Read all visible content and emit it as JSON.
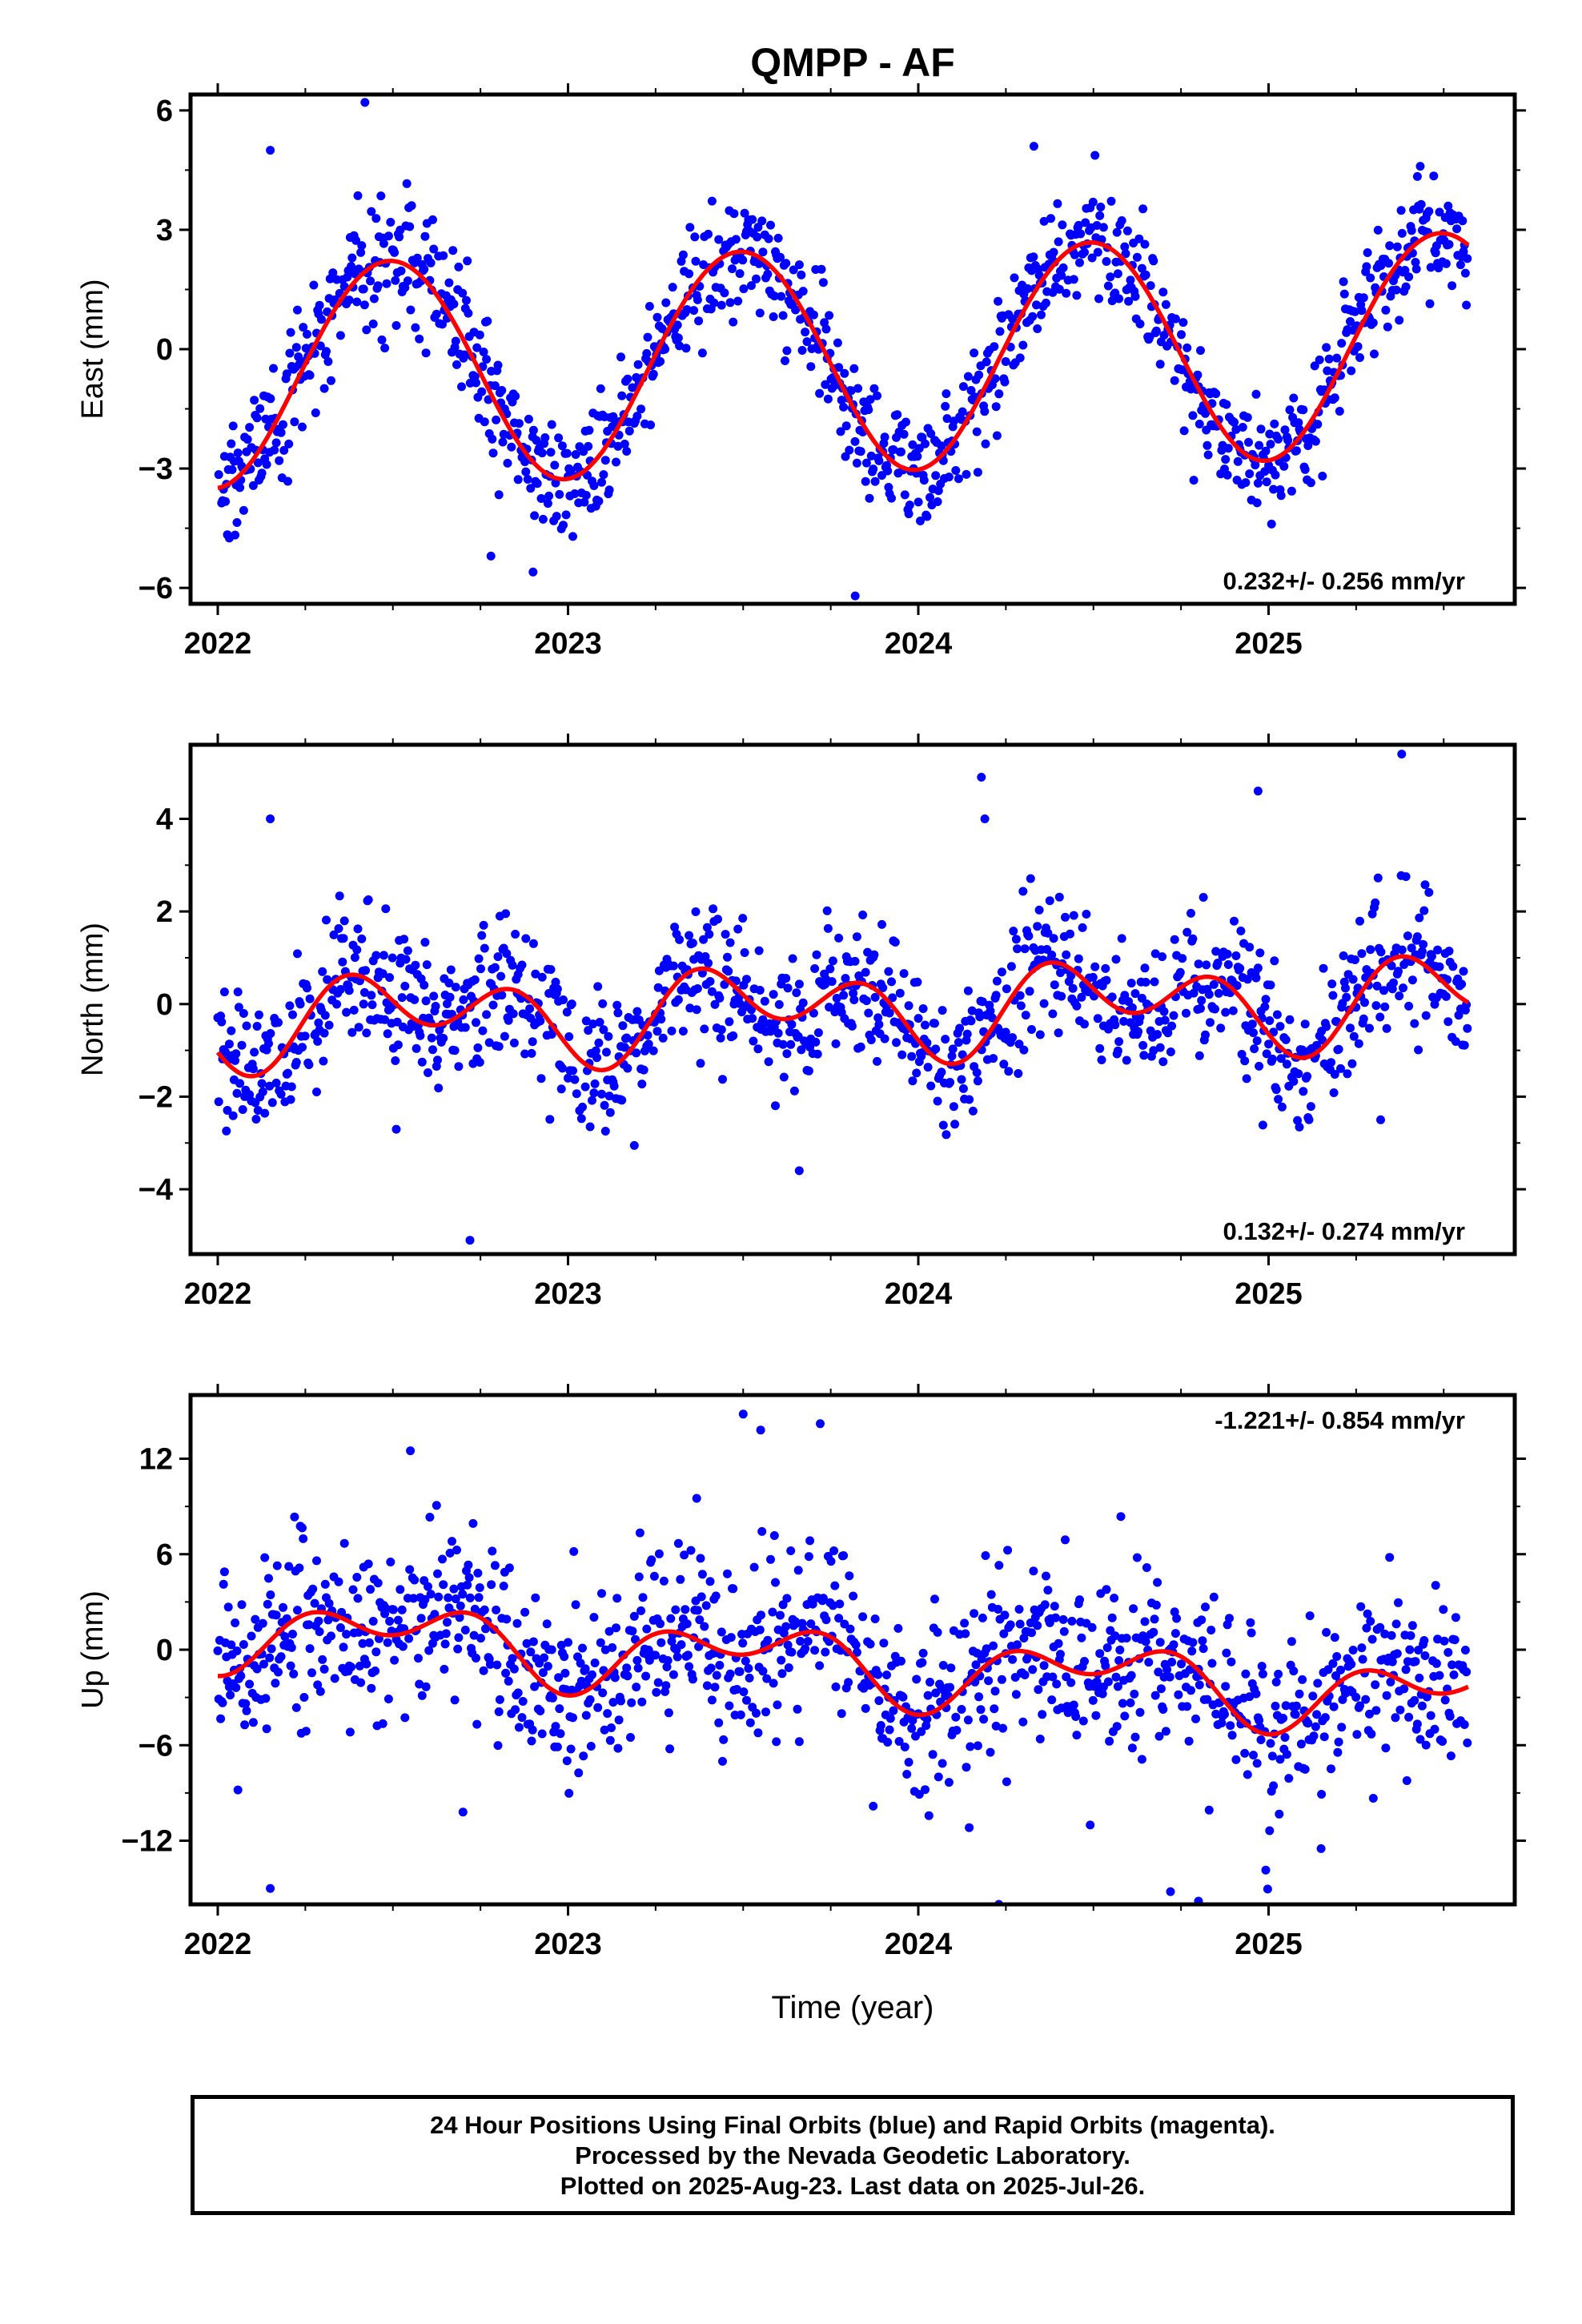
{
  "figure": {
    "title": "QMPP - AF",
    "x_tick_labels": [
      "2022",
      "2023",
      "2024",
      "2025"
    ],
    "x_axis_label": "Time (year)",
    "colors": {
      "points": "#0000ff",
      "fit": "#ff0000",
      "frame": "#000000"
    }
  },
  "chart_data": [
    {
      "type": "scatter",
      "component": "East",
      "ylabel": "East (mm)",
      "rate_label": "0.232+/- 0.256 mm/yr",
      "rate_position": "bottom-right",
      "x_range": [
        2021.92,
        2025.65
      ],
      "ylim": [
        -6.4,
        6.4
      ],
      "y_ticks": [
        -6,
        -3,
        0,
        3,
        6
      ],
      "y_tick_labels": [
        "−6",
        "−3",
        "0",
        "3",
        "6"
      ],
      "seasonal_model": {
        "offset": -0.3,
        "rate": 0.232,
        "t0": 2023.5,
        "amp1": 2.8,
        "phase1": 2022.24,
        "amp2": 0.05,
        "phase2": 2022.1
      },
      "scatter_sd": 0.75,
      "outliers": [
        [
          2022.15,
          5.0
        ],
        [
          2022.42,
          6.2
        ],
        [
          2022.78,
          -5.2
        ],
        [
          2022.9,
          -5.6
        ],
        [
          2023.82,
          -6.2
        ],
        [
          2024.33,
          5.1
        ]
      ],
      "series": [
        {
          "name": "",
          "kind": "daily positions",
          "start": 2022.0,
          "end": 2025.57,
          "step": 0.00274
        },
        {
          "name": "",
          "kind": "model fit",
          "start": 2022.0,
          "end": 2025.57,
          "step": 0.005
        }
      ]
    },
    {
      "type": "scatter",
      "component": "North",
      "ylabel": "North (mm)",
      "rate_label": "0.132+/- 0.274 mm/yr",
      "rate_position": "bottom-right",
      "x_range": [
        2021.92,
        2025.65
      ],
      "ylim": [
        -5.4,
        5.6
      ],
      "y_ticks": [
        -4,
        -2,
        0,
        2,
        4
      ],
      "y_tick_labels": [
        "−4",
        "−2",
        "0",
        "2",
        "4"
      ],
      "seasonal_model": {
        "offset": -0.15,
        "rate": 0.132,
        "t0": 2023.5,
        "amp1": 0.55,
        "phase1": 2022.3,
        "amp2": 0.7,
        "phase2": 2022.23
      },
      "scatter_sd": 0.75,
      "outliers": [
        [
          2022.15,
          4.0
        ],
        [
          2022.72,
          -5.1
        ],
        [
          2023.66,
          -3.6
        ],
        [
          2024.18,
          4.9
        ],
        [
          2024.19,
          4.0
        ],
        [
          2024.97,
          4.6
        ],
        [
          2025.32,
          -2.5
        ],
        [
          2025.38,
          5.4
        ]
      ],
      "series": [
        {
          "name": "",
          "kind": "daily positions",
          "start": 2022.0,
          "end": 2025.57,
          "step": 0.00274
        },
        {
          "name": "",
          "kind": "model fit",
          "start": 2022.0,
          "end": 2025.57,
          "step": 0.005
        }
      ]
    },
    {
      "type": "scatter",
      "component": "Up",
      "ylabel": "Up (mm)",
      "rate_label": "-1.221+/- 0.854 mm/yr",
      "rate_position": "top-right",
      "x_range": [
        2021.92,
        2025.65
      ],
      "ylim": [
        -16,
        16
      ],
      "y_ticks": [
        -12,
        -6,
        0,
        6,
        12
      ],
      "y_tick_labels": [
        "−12",
        "−6",
        "0",
        "6",
        "12"
      ],
      "seasonal_model": {
        "offset": -0.5,
        "rate": -1.221,
        "t0": 2023.5,
        "amp1": 1.6,
        "phase1": 2022.27,
        "amp2": 1.4,
        "phase2": 2022.12
      },
      "scatter_sd": 2.8,
      "outliers": [
        [
          2022.15,
          -15.0
        ],
        [
          2022.55,
          12.5
        ],
        [
          2022.7,
          -10.2
        ],
        [
          2023.5,
          14.8
        ],
        [
          2023.55,
          13.8
        ],
        [
          2023.72,
          14.2
        ],
        [
          2024.23,
          -16.0
        ],
        [
          2024.72,
          -15.2
        ],
        [
          2024.8,
          -15.8
        ],
        [
          2025.15,
          -12.5
        ]
      ],
      "series": [
        {
          "name": "",
          "kind": "daily positions",
          "start": 2022.0,
          "end": 2025.57,
          "step": 0.00274
        },
        {
          "name": "",
          "kind": "model fit",
          "start": 2022.0,
          "end": 2025.57,
          "step": 0.005
        }
      ]
    }
  ],
  "footer": {
    "line1": "24 Hour Positions Using Final Orbits (blue) and Rapid Orbits (magenta).",
    "line2": "Processed by the Nevada Geodetic Laboratory.",
    "line3": "Plotted on 2025-Aug-23. Last data on 2025-Jul-26."
  }
}
